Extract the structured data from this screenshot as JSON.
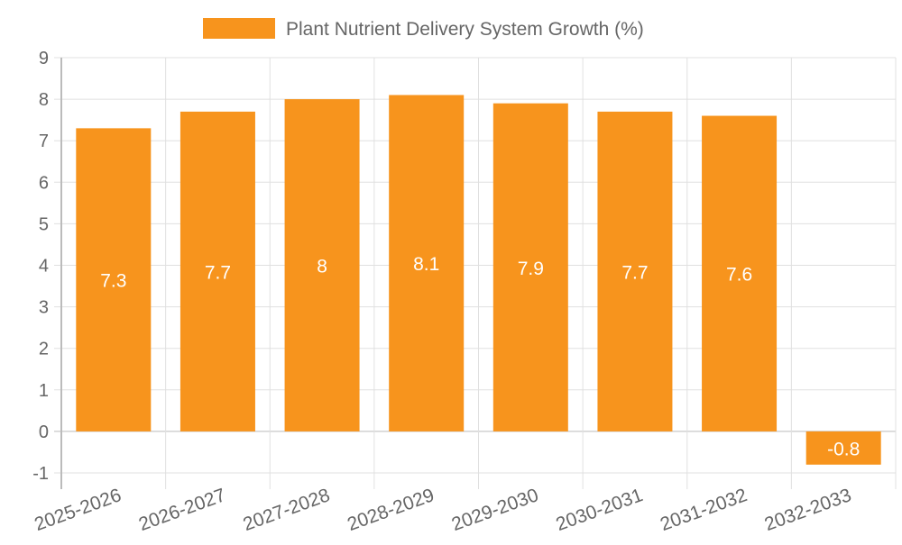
{
  "chart_data": {
    "type": "bar",
    "title": "",
    "legend": [
      {
        "label": "Plant Nutrient Delivery System Growth (%)",
        "color": "#F7941D"
      }
    ],
    "legend_placement": "top-center",
    "categories": [
      "2025-2026",
      "2026-2027",
      "2027-2028",
      "2028-2029",
      "2029-2030",
      "2030-2031",
      "2031-2032",
      "2032-2033"
    ],
    "series": [
      {
        "name": "Plant Nutrient Delivery System Growth (%)",
        "values": [
          7.3,
          7.7,
          8,
          8.1,
          7.9,
          7.7,
          7.6,
          -0.8
        ],
        "color": "#F7941D"
      }
    ],
    "data_labels": [
      "7.3",
      "7.7",
      "8",
      "8.1",
      "7.9",
      "7.7",
      "7.6",
      "-0.8"
    ],
    "y_ticks": [
      "9",
      "8",
      "7",
      "6",
      "5",
      "4",
      "3",
      "2",
      "1",
      "0",
      "-1"
    ],
    "xlabel": "",
    "ylabel": "",
    "ylim": [
      -1,
      9
    ],
    "grid": true
  }
}
